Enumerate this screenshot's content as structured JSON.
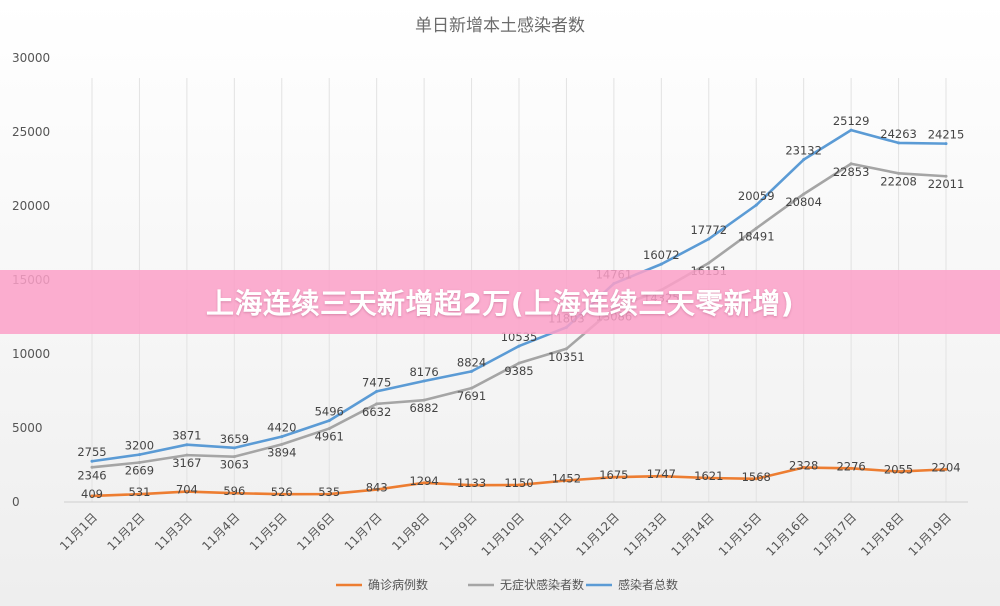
{
  "banner": {
    "text": "上海连续三天新增超2万(上海连续三天零新增)"
  },
  "colors": {
    "confirmed": "#ed7d31",
    "asymptomatic": "#a5a5a5",
    "total": "#5b9bd5",
    "banner": "#fca0c8"
  },
  "chart_data": {
    "type": "line",
    "title": "单日新增本土感染者数",
    "categories": [
      "11月1日",
      "11月2日",
      "11月3日",
      "11月4日",
      "11月5日",
      "11月6日",
      "11月7日",
      "11月8日",
      "11月9日",
      "11月10日",
      "11月11日",
      "11月12日",
      "11月13日",
      "11月14日",
      "11月15日",
      "11月16日",
      "11月17日",
      "11月18日",
      "11月19日"
    ],
    "ylim": [
      0,
      30000
    ],
    "yticks": [
      0,
      5000,
      10000,
      15000,
      20000,
      25000,
      30000
    ],
    "grid": "vertical",
    "legend_position": "bottom",
    "series": [
      {
        "name": "确诊病例数",
        "color": "#ed7d31",
        "values": [
          409,
          531,
          704,
          596,
          526,
          535,
          843,
          1294,
          1133,
          1150,
          1452,
          1675,
          1747,
          1621,
          1568,
          2328,
          2276,
          2055,
          2204
        ]
      },
      {
        "name": "无症状感染者数",
        "color": "#a5a5a5",
        "values": [
          2346,
          2669,
          3167,
          3063,
          3894,
          4961,
          6632,
          6882,
          7691,
          9385,
          10351,
          13086,
          14325,
          16151,
          18491,
          20804,
          22853,
          22208,
          22011
        ]
      },
      {
        "name": "感染者总数",
        "color": "#5b9bd5",
        "values": [
          2755,
          3200,
          3871,
          3659,
          4420,
          5496,
          7475,
          8176,
          8824,
          10535,
          11803,
          14761,
          16072,
          17772,
          20059,
          23132,
          25129,
          24263,
          24215
        ]
      }
    ]
  }
}
